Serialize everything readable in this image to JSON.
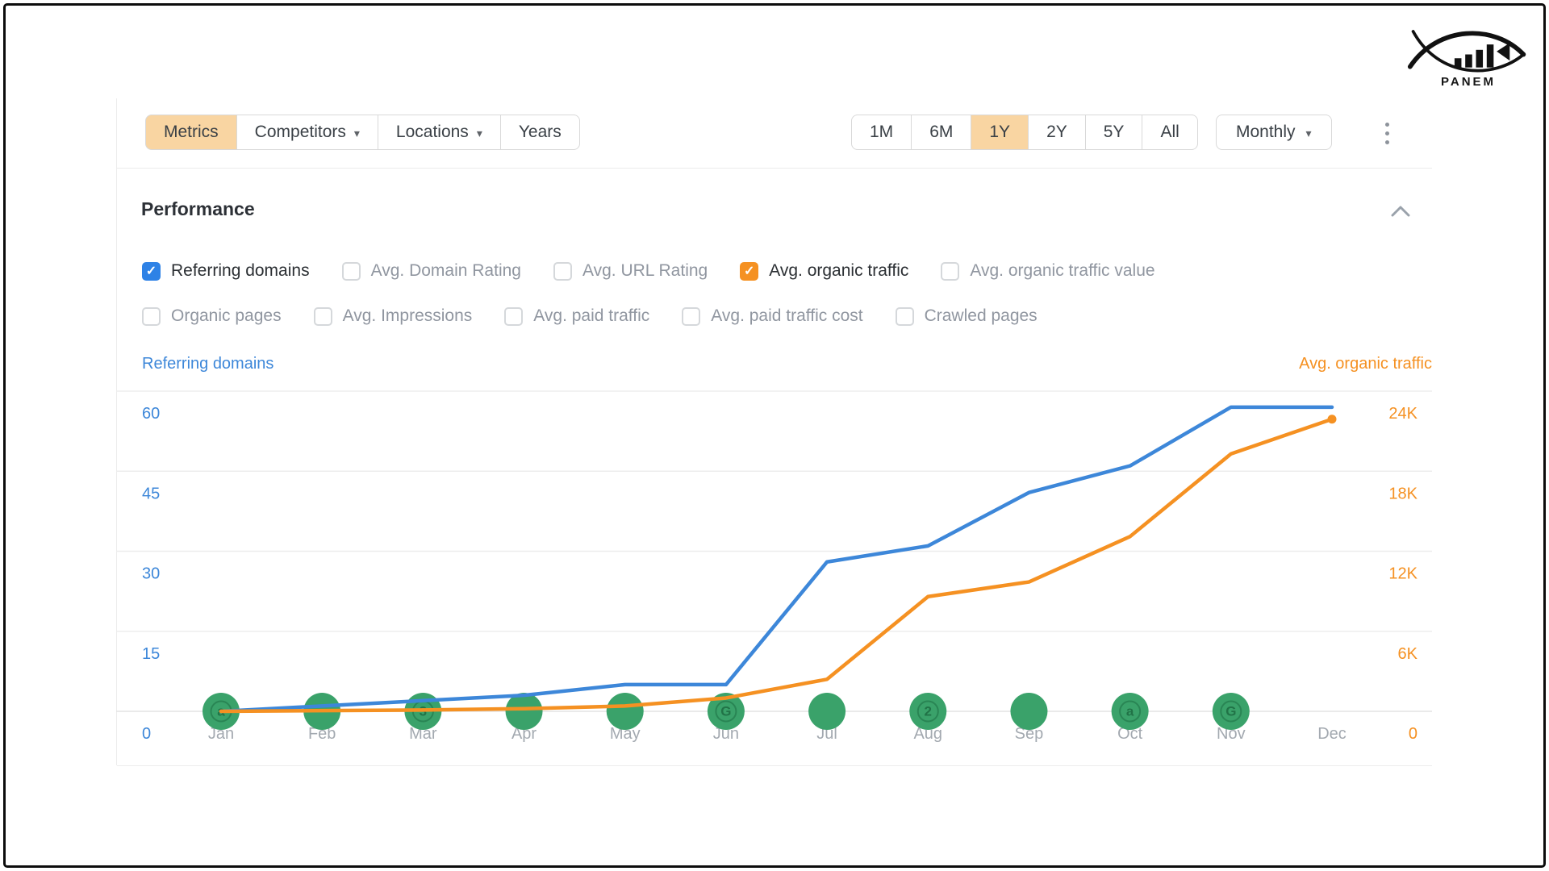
{
  "brand": {
    "name": "PANEM"
  },
  "toolbar": {
    "view_tabs": [
      {
        "label": "Metrics",
        "active": true,
        "caret": false
      },
      {
        "label": "Competitors",
        "active": false,
        "caret": true
      },
      {
        "label": "Locations",
        "active": false,
        "caret": true
      },
      {
        "label": "Years",
        "active": false,
        "caret": false
      }
    ],
    "time_ranges": [
      {
        "label": "1M",
        "active": false
      },
      {
        "label": "6M",
        "active": false
      },
      {
        "label": "1Y",
        "active": true
      },
      {
        "label": "2Y",
        "active": false
      },
      {
        "label": "5Y",
        "active": false
      },
      {
        "label": "All",
        "active": false
      }
    ],
    "granularity_label": "Monthly",
    "more_options_icon": "kebab-vertical"
  },
  "performance": {
    "title": "Performance",
    "collapse_icon": "chevron-up",
    "metric_toggles_row1": [
      {
        "label": "Referring domains",
        "checked": true,
        "accent": "blue"
      },
      {
        "label": "Avg. Domain Rating",
        "checked": false,
        "accent": ""
      },
      {
        "label": "Avg. URL Rating",
        "checked": false,
        "accent": ""
      },
      {
        "label": "Avg. organic traffic",
        "checked": true,
        "accent": "orange"
      },
      {
        "label": "Avg. organic traffic value",
        "checked": false,
        "accent": ""
      }
    ],
    "metric_toggles_row2": [
      {
        "label": "Organic pages",
        "checked": false,
        "accent": ""
      },
      {
        "label": "Avg. Impressions",
        "checked": false,
        "accent": ""
      },
      {
        "label": "Avg. paid traffic",
        "checked": false,
        "accent": ""
      },
      {
        "label": "Avg. paid traffic cost",
        "checked": false,
        "accent": ""
      },
      {
        "label": "Crawled pages",
        "checked": false,
        "accent": ""
      }
    ]
  },
  "chart_data": {
    "type": "line",
    "title": "Performance",
    "categories": [
      "Jan",
      "Feb",
      "Mar",
      "Apr",
      "May",
      "Jun",
      "Jul",
      "Aug",
      "Sep",
      "Oct",
      "Nov",
      "Dec"
    ],
    "series": [
      {
        "name": "Referring domains",
        "axis": "left",
        "color": "#3d87d9",
        "values": [
          0,
          1,
          2,
          3,
          5,
          5,
          28,
          31,
          41,
          46,
          57,
          57
        ]
      },
      {
        "name": "Avg. organic traffic",
        "axis": "right",
        "color": "#f59122",
        "values": [
          0,
          50,
          100,
          200,
          400,
          1000,
          2400,
          8600,
          9700,
          13100,
          19300,
          21900
        ]
      }
    ],
    "left_axis": {
      "label": "Referring domains",
      "color": "#3d87d9",
      "ticks": [
        0,
        15,
        30,
        45,
        60
      ],
      "max": 60
    },
    "right_axis": {
      "label": "Avg. organic traffic",
      "color": "#f59122",
      "ticks": [
        "0",
        "6K",
        "12K",
        "18K",
        "24K"
      ],
      "max": 24000
    },
    "grid": true,
    "legend_position": "top",
    "marker_color": "#3aa26a",
    "markers": [
      {
        "month": "Jan",
        "glyph": "a"
      },
      {
        "month": "Feb",
        "glyph": ""
      },
      {
        "month": "Mar",
        "glyph": "3"
      },
      {
        "month": "Apr",
        "glyph": ""
      },
      {
        "month": "May",
        "glyph": ""
      },
      {
        "month": "Jun",
        "glyph": "G"
      },
      {
        "month": "Jul",
        "glyph": ""
      },
      {
        "month": "Aug",
        "glyph": "2"
      },
      {
        "month": "Sep",
        "glyph": ""
      },
      {
        "month": "Oct",
        "glyph": "a"
      },
      {
        "month": "Nov",
        "glyph": "G"
      }
    ]
  },
  "colors": {
    "active_tab_bg": "#f9d5a2",
    "checkbox_blue": "#2e82e6",
    "checkbox_orange": "#f59122",
    "grid_line": "#ededed",
    "month_label": "#a3a9b0"
  }
}
